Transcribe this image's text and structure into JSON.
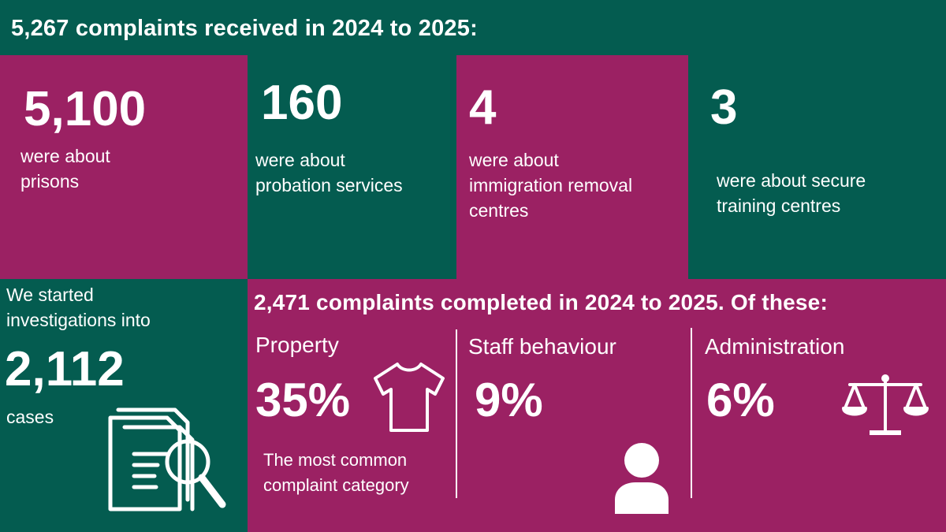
{
  "header": {
    "title": "5,267 complaints received in 2024 to 2025:"
  },
  "received": [
    {
      "value": "5,100",
      "lines": [
        "were about",
        "prisons"
      ]
    },
    {
      "value": "160",
      "lines": [
        "were about",
        "probation services"
      ]
    },
    {
      "value": "4",
      "lines": [
        "were about",
        "immigration removal",
        "centres"
      ]
    },
    {
      "value": "3",
      "lines": [
        "were about secure",
        "training centres"
      ]
    }
  ],
  "investigations": {
    "intro_lines": [
      "We started",
      "investigations into"
    ],
    "value": "2,112",
    "suffix": "cases",
    "icon": "document-search-icon"
  },
  "completed": {
    "title": "2,471 complaints completed in 2024 to 2025. Of these:",
    "categories": [
      {
        "label": "Property",
        "percent": "35%",
        "note_lines": [
          "The most common",
          "complaint category"
        ],
        "icon": "tshirt-icon"
      },
      {
        "label": "Staff behaviour",
        "percent": "9%",
        "icon": "person-icon"
      },
      {
        "label": "Administration",
        "percent": "6%",
        "icon": "scales-icon"
      }
    ]
  },
  "colors": {
    "green": "#045c50",
    "plum": "#9b2163",
    "text": "#ffffff"
  }
}
